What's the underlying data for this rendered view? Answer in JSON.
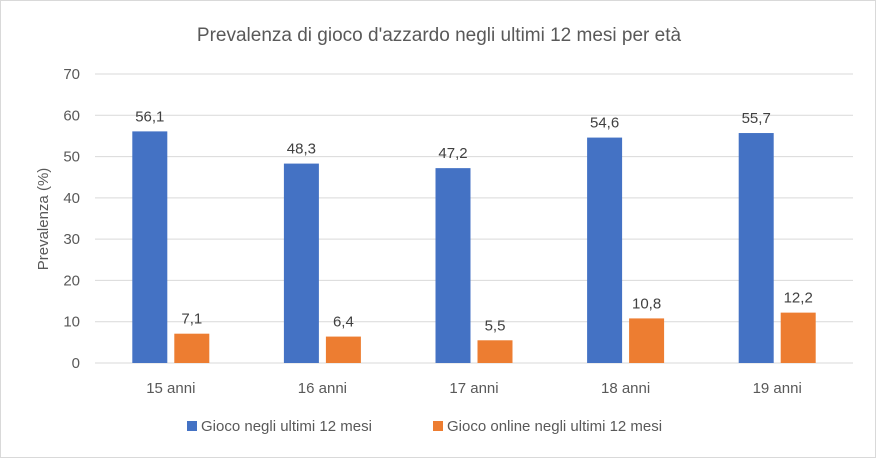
{
  "chart_data": {
    "type": "bar",
    "title": "Prevalenza di gioco d'azzardo negli ultimi 12 mesi per età",
    "xlabel": "",
    "ylabel": "Prevalenza (%)",
    "ylim": [
      0,
      70
    ],
    "yticks": [
      0,
      10,
      20,
      30,
      40,
      50,
      60,
      70
    ],
    "grid": true,
    "legend_position": "bottom",
    "categories": [
      "15 anni",
      "16 anni",
      "17 anni",
      "18 anni",
      "19 anni"
    ],
    "series": [
      {
        "name": "Gioco negli ultimi 12 mesi",
        "color": "#4472C4",
        "values": [
          56.1,
          48.3,
          47.2,
          54.6,
          55.7
        ],
        "labels": [
          "56,1",
          "48,3",
          "47,2",
          "54,6",
          "55,7"
        ]
      },
      {
        "name": "Gioco online negli ultimi 12 mesi",
        "color": "#ED7D31",
        "values": [
          7.1,
          6.4,
          5.5,
          10.8,
          12.2
        ],
        "labels": [
          "7,1",
          "6,4",
          "5,5",
          "10,8",
          "12,2"
        ]
      }
    ]
  }
}
